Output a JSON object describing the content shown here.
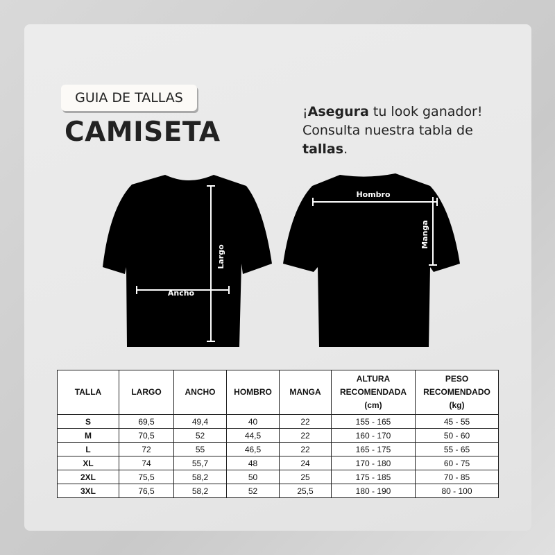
{
  "header": {
    "badge": "GUIA DE TALLAS",
    "title": "CAMISETA",
    "tagline": {
      "l1_prefix": "¡",
      "l1_bold": "Asegura",
      "l1_rest": " tu look ganador!",
      "l2": "Consulta nuestra tabla de",
      "l3_bold": "tallas",
      "l3_rest": "."
    }
  },
  "diagram": {
    "front": {
      "length_label": "Largo",
      "width_label": "Ancho"
    },
    "back": {
      "shoulder_label": "Hombro",
      "sleeve_label": "Manga"
    },
    "shirt_color": "#000000"
  },
  "table": {
    "headers": [
      "TALLA",
      "LARGO",
      "ANCHO",
      "HOMBRO",
      "MANGA",
      "ALTURA RECOMENDADA (cm)",
      "PESO RECOMENDADO (kg)"
    ],
    "header_lines": [
      [
        "TALLA"
      ],
      [
        "LARGO"
      ],
      [
        "ANCHO"
      ],
      [
        "HOMBRO"
      ],
      [
        "MANGA"
      ],
      [
        "ALTURA",
        "RECOMENDADA",
        "(cm)"
      ],
      [
        "PESO",
        "RECOMENDADO",
        "(kg)"
      ]
    ],
    "rows": [
      [
        "S",
        "69,5",
        "49,4",
        "40",
        "22",
        "155 - 165",
        "45 - 55"
      ],
      [
        "M",
        "70,5",
        "52",
        "44,5",
        "22",
        "160 - 170",
        "50 - 60"
      ],
      [
        "L",
        "72",
        "55",
        "46,5",
        "22",
        "165 - 175",
        "55 - 65"
      ],
      [
        "XL",
        "74",
        "55,7",
        "48",
        "24",
        "170 - 180",
        "60 - 75"
      ],
      [
        "2XL",
        "75,5",
        "58,2",
        "50",
        "25",
        "175 - 185",
        "70 - 85"
      ],
      [
        "3XL",
        "76,5",
        "58,2",
        "52",
        "25,5",
        "180 - 190",
        "80 - 100"
      ]
    ]
  }
}
